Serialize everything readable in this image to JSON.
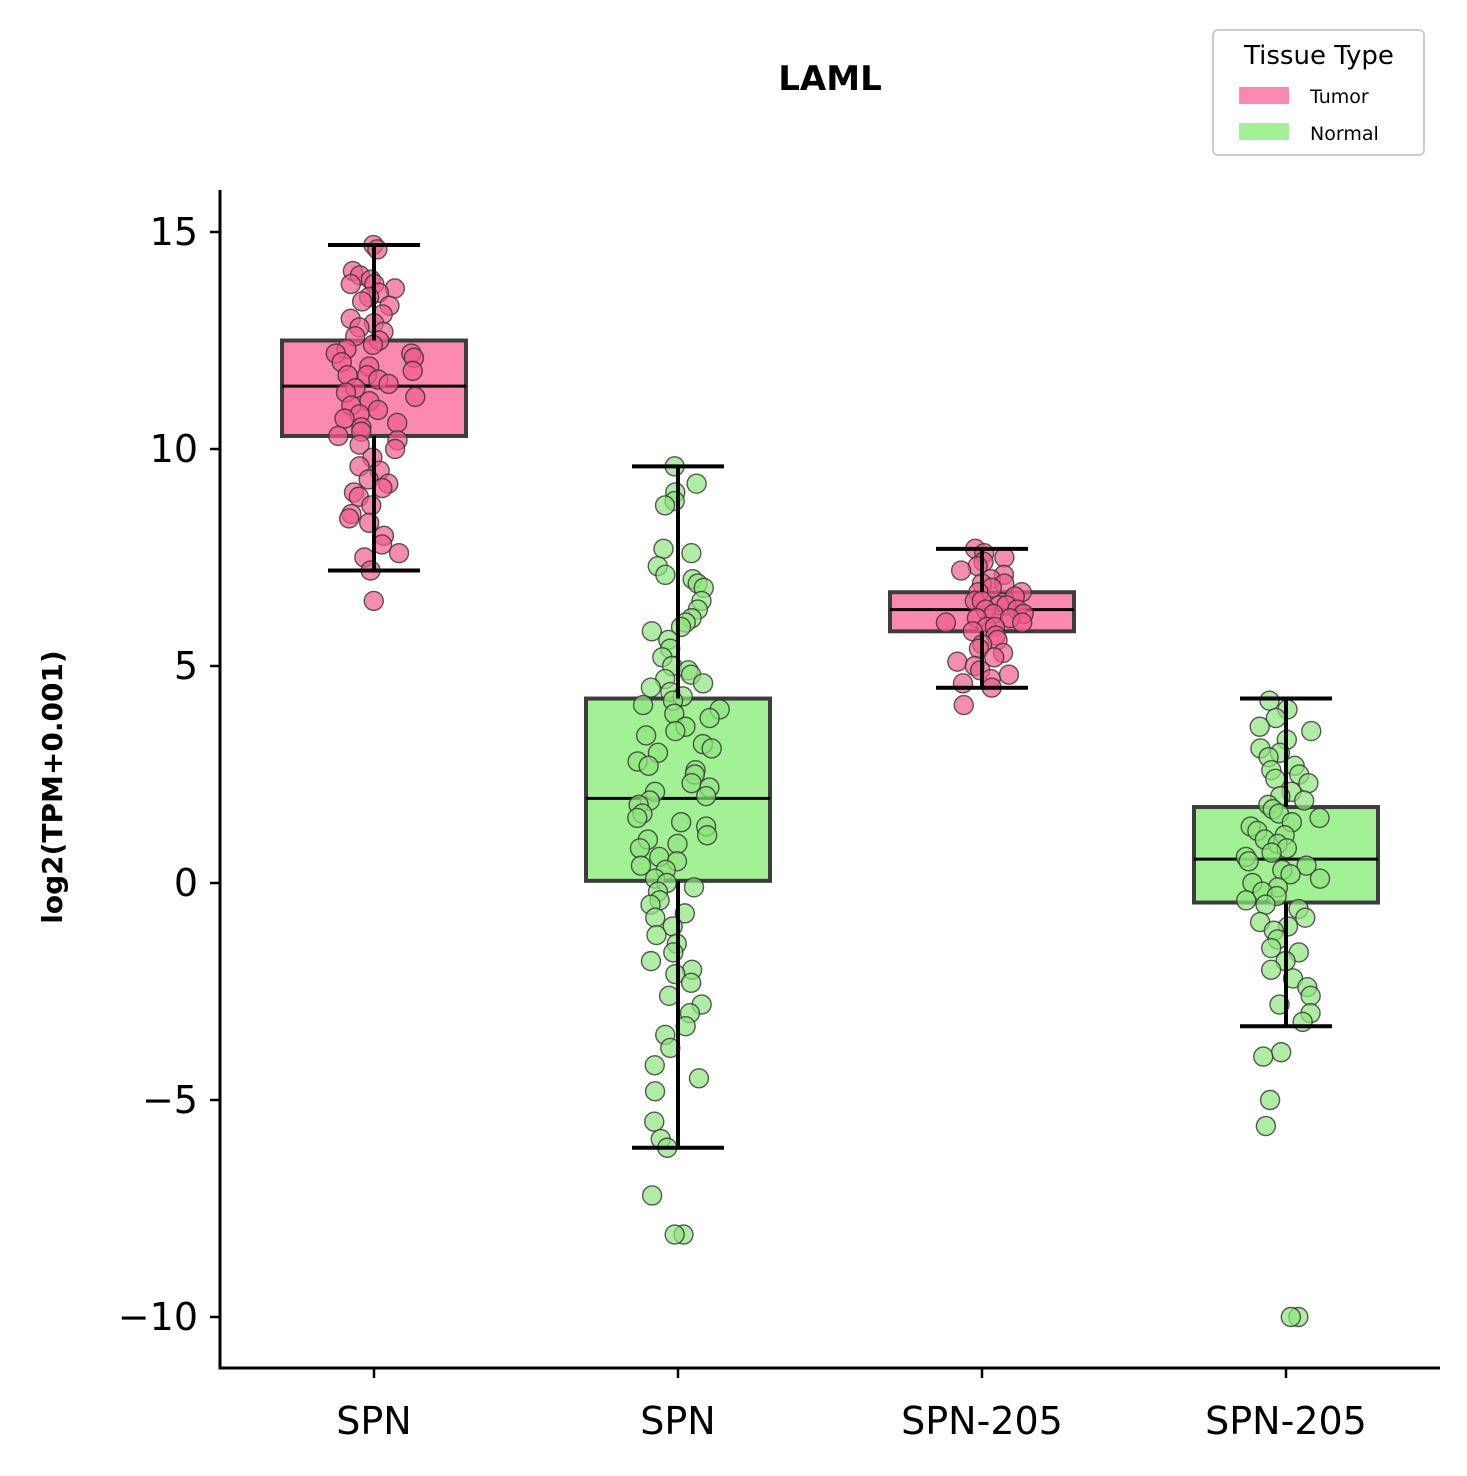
{
  "chart_data": {
    "type": "box",
    "title": "LAML",
    "ylabel": "log2(TPM+0.001)",
    "ylim": [
      -11.2,
      16
    ],
    "yticks": [
      -10,
      -5,
      0,
      5,
      10,
      15
    ],
    "ytick_labels": [
      "−10",
      "−5",
      "0",
      "5",
      "10",
      "15"
    ],
    "categories": [
      "SPN",
      "SPN",
      "SPN-205",
      "SPN-205"
    ],
    "legend": {
      "title": "Tissue Type",
      "position": "top-right",
      "entries": [
        {
          "label": "Tumor",
          "color": "#fb88ae"
        },
        {
          "label": "Normal",
          "color": "#a2f195"
        }
      ]
    },
    "series": [
      {
        "category_index": 0,
        "group": "Tumor",
        "color": "#fb88ae",
        "point_color": "#f25b8e",
        "q1": 10.3,
        "median": 11.45,
        "q3": 12.5,
        "whisker_low": 7.2,
        "whisker_high": 14.7,
        "points": [
          14.7,
          14.6,
          14.1,
          14.0,
          13.9,
          13.8,
          13.8,
          13.7,
          13.6,
          13.5,
          13.4,
          13.3,
          13.1,
          13.0,
          12.9,
          12.8,
          12.7,
          12.6,
          12.5,
          12.4,
          12.3,
          12.2,
          12.2,
          12.1,
          12.0,
          11.9,
          11.8,
          11.7,
          11.7,
          11.6,
          11.5,
          11.4,
          11.3,
          11.2,
          11.1,
          11.0,
          10.9,
          10.8,
          10.7,
          10.6,
          10.5,
          10.4,
          10.3,
          10.2,
          10.1,
          10.0,
          9.8,
          9.6,
          9.5,
          9.3,
          9.2,
          9.1,
          9.0,
          8.9,
          8.7,
          8.5,
          8.4,
          8.3,
          8.0,
          7.8,
          7.6,
          7.5,
          7.2,
          6.5
        ]
      },
      {
        "category_index": 1,
        "group": "Normal",
        "color": "#a2f195",
        "point_color": "#8ee57e",
        "q1": 0.05,
        "median": 1.95,
        "q3": 4.25,
        "whisker_low": -6.1,
        "whisker_high": 9.6,
        "points": [
          9.6,
          9.2,
          9.0,
          8.8,
          8.7,
          7.7,
          7.6,
          7.3,
          7.1,
          7.0,
          6.9,
          6.8,
          6.5,
          6.3,
          6.1,
          6.0,
          5.9,
          5.8,
          5.6,
          5.4,
          5.2,
          5.0,
          4.9,
          4.8,
          4.7,
          4.6,
          4.5,
          4.4,
          4.3,
          4.2,
          4.1,
          4.0,
          3.9,
          3.8,
          3.6,
          3.5,
          3.4,
          3.2,
          3.1,
          3.0,
          2.8,
          2.7,
          2.6,
          2.5,
          2.3,
          2.2,
          2.1,
          2.0,
          1.9,
          1.8,
          1.6,
          1.5,
          1.4,
          1.3,
          1.1,
          1.0,
          0.9,
          0.8,
          0.6,
          0.5,
          0.4,
          0.3,
          0.1,
          0.0,
          -0.1,
          -0.2,
          -0.4,
          -0.5,
          -0.7,
          -0.8,
          -1.0,
          -1.2,
          -1.4,
          -1.6,
          -1.8,
          -2.0,
          -2.1,
          -2.3,
          -2.6,
          -2.8,
          -3.0,
          -3.3,
          -3.5,
          -3.8,
          -4.2,
          -4.5,
          -4.8,
          -5.5,
          -5.9,
          -6.1,
          -7.2,
          -8.1,
          -8.1
        ]
      },
      {
        "category_index": 2,
        "group": "Tumor",
        "color": "#fb88ae",
        "point_color": "#f25b8e",
        "q1": 5.8,
        "median": 6.3,
        "q3": 6.7,
        "whisker_low": 4.5,
        "whisker_high": 7.7,
        "points": [
          7.7,
          7.6,
          7.5,
          7.4,
          7.3,
          7.2,
          7.1,
          7.0,
          6.9,
          6.9,
          6.8,
          6.7,
          6.7,
          6.6,
          6.5,
          6.5,
          6.4,
          6.4,
          6.3,
          6.3,
          6.2,
          6.2,
          6.1,
          6.1,
          6.0,
          6.0,
          5.9,
          5.9,
          5.8,
          5.7,
          5.6,
          5.5,
          5.4,
          5.3,
          5.2,
          5.1,
          5.0,
          4.9,
          4.8,
          4.7,
          4.6,
          4.5,
          4.1
        ]
      },
      {
        "category_index": 3,
        "group": "Normal",
        "color": "#a2f195",
        "point_color": "#8ee57e",
        "q1": -0.45,
        "median": 0.55,
        "q3": 1.75,
        "whisker_low": -3.3,
        "whisker_high": 4.25,
        "points": [
          4.2,
          4.0,
          3.8,
          3.6,
          3.5,
          3.3,
          3.1,
          3.0,
          2.9,
          2.7,
          2.6,
          2.5,
          2.4,
          2.3,
          2.1,
          2.0,
          1.9,
          1.8,
          1.7,
          1.6,
          1.5,
          1.4,
          1.3,
          1.2,
          1.1,
          1.0,
          0.9,
          0.8,
          0.7,
          0.6,
          0.5,
          0.4,
          0.3,
          0.2,
          0.1,
          0.0,
          -0.1,
          -0.2,
          -0.3,
          -0.4,
          -0.5,
          -0.6,
          -0.8,
          -0.9,
          -1.0,
          -1.1,
          -1.3,
          -1.5,
          -1.6,
          -1.8,
          -2.0,
          -2.2,
          -2.4,
          -2.6,
          -2.8,
          -3.0,
          -3.2,
          -3.9,
          -4.0,
          -5.0,
          -5.6,
          -10.0,
          -10.0
        ]
      }
    ]
  }
}
